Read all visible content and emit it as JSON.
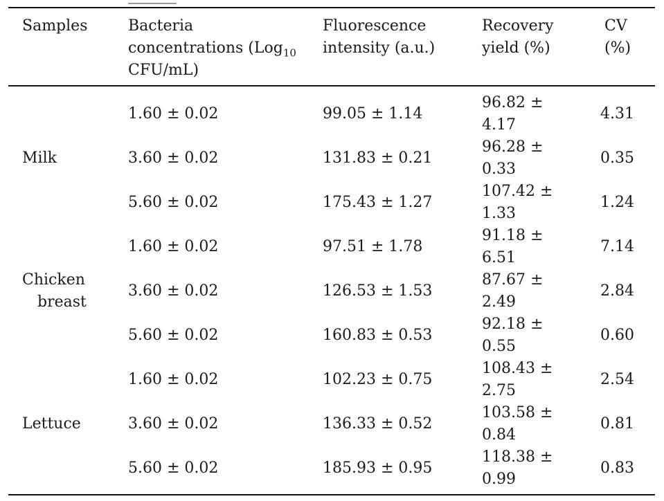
{
  "table": {
    "headers": {
      "samples": [
        "Samples"
      ],
      "bacteria": [
        "Bacteria",
        "concentrations (Log",
        "10",
        "CFU/mL)"
      ],
      "fluorescence": [
        "Fluorescence",
        "intensity (a.u.)"
      ],
      "recovery": [
        "Recovery",
        "yield (%)"
      ],
      "cv": [
        "CV",
        "(%)"
      ]
    },
    "groups": [
      {
        "label_lines": [
          "Milk"
        ]
      },
      {
        "label_lines": [
          "Chicken",
          "breast"
        ]
      },
      {
        "label_lines": [
          "Lettuce"
        ]
      }
    ],
    "rows": [
      {
        "bacteria": "1.60 ± 0.02",
        "fluorescence": "99.05 ± 1.14",
        "recovery": [
          "96.82 ±",
          "4.17"
        ],
        "cv": "4.31"
      },
      {
        "bacteria": "3.60 ± 0.02",
        "fluorescence": "131.83 ± 0.21",
        "recovery": [
          "96.28 ±",
          "0.33"
        ],
        "cv": "0.35"
      },
      {
        "bacteria": "5.60 ± 0.02",
        "fluorescence": "175.43 ± 1.27",
        "recovery": [
          "107.42 ±",
          "1.33"
        ],
        "cv": "1.24"
      },
      {
        "bacteria": "1.60 ± 0.02",
        "fluorescence": "97.51 ± 1.78",
        "recovery": [
          "91.18 ±",
          "6.51"
        ],
        "cv": "7.14"
      },
      {
        "bacteria": "3.60 ± 0.02",
        "fluorescence": "126.53 ± 1.53",
        "recovery": [
          "87.67 ±",
          "2.49"
        ],
        "cv": "2.84"
      },
      {
        "bacteria": "5.60 ± 0.02",
        "fluorescence": "160.83 ± 0.53",
        "recovery": [
          "92.18 ±",
          "0.55"
        ],
        "cv": "0.60"
      },
      {
        "bacteria": "1.60 ± 0.02",
        "fluorescence": "102.23 ± 0.75",
        "recovery": [
          "108.43 ±",
          "2.75"
        ],
        "cv": "2.54"
      },
      {
        "bacteria": "3.60 ± 0.02",
        "fluorescence": "136.33 ± 0.52",
        "recovery": [
          "103.58 ±",
          "0.84"
        ],
        "cv": "0.81"
      },
      {
        "bacteria": "5.60 ± 0.02",
        "fluorescence": "185.93 ± 0.95",
        "recovery": [
          "118.38 ±",
          "0.99"
        ],
        "cv": "0.83"
      }
    ]
  }
}
